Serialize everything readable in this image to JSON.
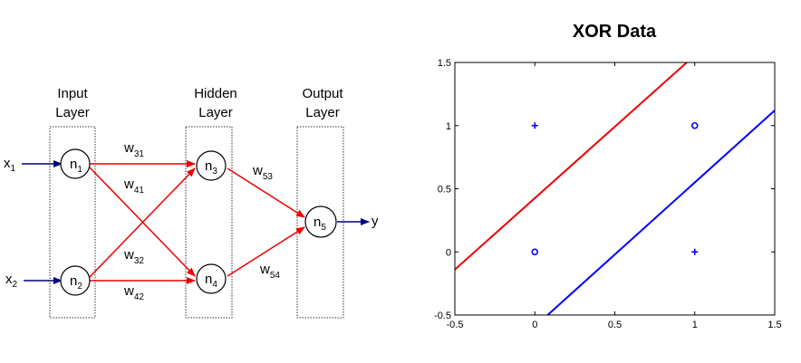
{
  "network": {
    "layer_labels": {
      "input": [
        "Input",
        "Layer"
      ],
      "hidden": [
        "Hidden",
        "Layer"
      ],
      "output": [
        "Output",
        "Layer"
      ]
    },
    "neurons": [
      {
        "id": "n1",
        "base": "n",
        "sub": "1"
      },
      {
        "id": "n2",
        "base": "n",
        "sub": "2"
      },
      {
        "id": "n3",
        "base": "n",
        "sub": "3"
      },
      {
        "id": "n4",
        "base": "n",
        "sub": "4"
      },
      {
        "id": "n5",
        "base": "n",
        "sub": "5"
      }
    ],
    "inputs": [
      {
        "base": "x",
        "sub": "1"
      },
      {
        "base": "x",
        "sub": "2"
      }
    ],
    "output": "y",
    "weights": [
      {
        "base": "w",
        "sub": "31"
      },
      {
        "base": "w",
        "sub": "41"
      },
      {
        "base": "w",
        "sub": "32"
      },
      {
        "base": "w",
        "sub": "42"
      },
      {
        "base": "w",
        "sub": "53"
      },
      {
        "base": "w",
        "sub": "54"
      }
    ],
    "colors": {
      "connection": "#ee0000",
      "input_arrow": "#00007f",
      "node": "#000000"
    }
  },
  "chart_data": {
    "type": "scatter",
    "title": "XOR Data",
    "xlabel": "",
    "ylabel": "",
    "xlim": [
      -0.5,
      1.5
    ],
    "ylim": [
      -0.5,
      1.5
    ],
    "xticks": [
      -0.5,
      0,
      0.5,
      1,
      1.5
    ],
    "yticks": [
      -0.5,
      0,
      0.5,
      1,
      1.5
    ],
    "xtick_labels": [
      "-0.5",
      "0",
      "0.5",
      "1",
      "1.5"
    ],
    "ytick_labels": [
      "-0.5",
      "0",
      "0.5",
      "1",
      "1.5"
    ],
    "grid": false,
    "series": [
      {
        "marker": "plus",
        "color": "#0000ff",
        "points": [
          [
            0,
            1
          ],
          [
            1,
            0
          ]
        ]
      },
      {
        "marker": "circle",
        "color": "#0000ff",
        "points": [
          [
            0,
            0
          ],
          [
            1,
            1
          ]
        ]
      }
    ],
    "lines": [
      {
        "color": "#ee0000",
        "points": [
          [
            -0.5,
            -0.14
          ],
          [
            0.95,
            1.5
          ]
        ]
      },
      {
        "color": "#0000ff",
        "points": [
          [
            0.08,
            -0.5
          ],
          [
            1.5,
            1.12
          ]
        ]
      }
    ]
  }
}
